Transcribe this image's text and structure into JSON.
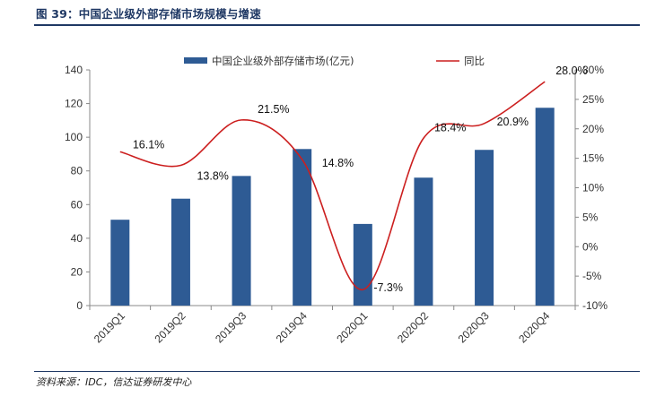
{
  "figure": {
    "title": "图 39：中国企业级外部存储市场规模与增速",
    "source": "资料来源：IDC，信达证券研发中心"
  },
  "colors": {
    "bar": "#2e5b94",
    "line": "#cc1f1f",
    "axis": "#888888",
    "title": "#1f3864"
  },
  "chart_data": {
    "type": "bar",
    "categories": [
      "2019Q1",
      "2019Q2",
      "2019Q3",
      "2019Q4",
      "2020Q1",
      "2020Q2",
      "2020Q3",
      "2020Q4"
    ],
    "series": [
      {
        "name": "中国企业级外部存储市场(亿元)",
        "type": "bar",
        "axis": "left",
        "values": [
          51,
          63.5,
          77,
          93,
          48.5,
          76,
          92.5,
          117.5
        ]
      },
      {
        "name": "同比",
        "type": "line",
        "axis": "right",
        "values": [
          16.1,
          13.8,
          21.5,
          14.8,
          -7.3,
          18.4,
          20.9,
          28.0
        ],
        "labels": [
          "16.1%",
          "13.8%",
          "21.5%",
          "14.8%",
          "-7.3%",
          "18.4%",
          "20.9%",
          "28.0%"
        ]
      }
    ],
    "ylim_left": [
      0,
      140
    ],
    "yticks_left": [
      "0",
      "20",
      "40",
      "60",
      "80",
      "100",
      "120",
      "140"
    ],
    "ylim_right": [
      -10,
      30
    ],
    "yticks_right": [
      "-10%",
      "-5%",
      "0%",
      "5%",
      "10%",
      "15%",
      "20%",
      "25%",
      "30%"
    ],
    "legend": "top",
    "grid": false
  }
}
